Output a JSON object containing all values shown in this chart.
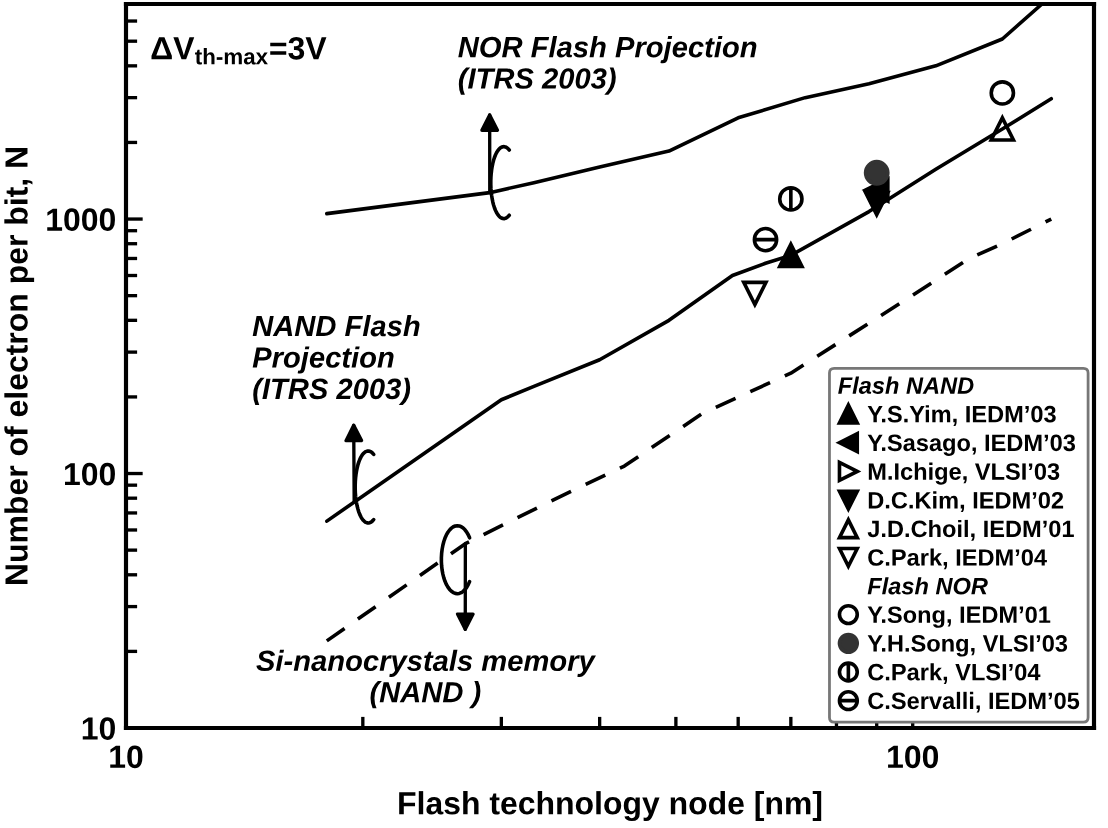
{
  "chart_data": {
    "type": "line",
    "log": "xy",
    "xlim": [
      10,
      170
    ],
    "ylim": [
      10,
      7000
    ],
    "xticks": [
      10,
      {
        "value": 20,
        "label": null
      },
      {
        "value": 30,
        "label": null
      },
      {
        "value": 40,
        "label": null
      },
      {
        "value": 50,
        "label": null
      },
      {
        "value": 60,
        "label": null
      },
      {
        "value": 70,
        "label": null
      },
      {
        "value": 80,
        "label": null
      },
      {
        "value": 90,
        "label": null
      },
      100
    ],
    "yticks": [
      10,
      {
        "value": 20,
        "label": null
      },
      {
        "value": 30,
        "label": null
      },
      {
        "value": 40,
        "label": null
      },
      {
        "value": 50,
        "label": null
      },
      {
        "value": 60,
        "label": null
      },
      {
        "value": 70,
        "label": null
      },
      {
        "value": 80,
        "label": null
      },
      {
        "value": 90,
        "label": null
      },
      100,
      {
        "value": 200,
        "label": null
      },
      {
        "value": 300,
        "label": null
      },
      {
        "value": 400,
        "label": null
      },
      {
        "value": 500,
        "label": null
      },
      {
        "value": 600,
        "label": null
      },
      {
        "value": 700,
        "label": null
      },
      {
        "value": 800,
        "label": null
      },
      {
        "value": 900,
        "label": null
      },
      1000,
      {
        "value": 2000,
        "label": null
      },
      {
        "value": 3000,
        "label": null
      },
      {
        "value": 4000,
        "label": null
      },
      {
        "value": 5000,
        "label": null
      },
      {
        "value": 6000,
        "label": null
      }
    ],
    "xlabel": "Flash technology node [nm]",
    "ylabel": "Number of electron per bit, N",
    "grid": false,
    "legend": "bottom right",
    "legend_title": "Flash NAND",
    "annotations": [
      "ΔV$_{th‐max}$=3V",
      {
        "text": "NOR Flash Projection\n(ITRS 2003)",
        "x": 29,
        "y": 1270
      },
      {
        "text": "NAND Flash\nProjection\n(ITRS 2003)",
        "x": 19.5,
        "y": 78
      },
      {
        "text": "Si-nanocrystals memory\n(NAND )",
        "x": 27,
        "y": 53
      },
      "Flash NOR"
    ],
    "series": [
      {
        "color": "#000000",
        "line_style": "solid",
        "x": [
          18,
          29,
          33,
          40,
          49,
          60,
          73,
          88,
          107,
          130,
          146
        ],
        "values": [
          1050,
          1270,
          1390,
          1600,
          1850,
          2500,
          3000,
          3400,
          4000,
          5100,
          7000
        ]
      },
      {
        "color": "#000000",
        "line_style": "solid",
        "x": [
          18,
          30,
          33,
          40,
          49,
          59,
          65,
          70,
          88,
          107,
          130,
          150
        ],
        "values": [
          65,
          195,
          220,
          280,
          400,
          600,
          670,
          720,
          1070,
          1570,
          2260,
          2970
        ]
      },
      {
        "color": "#000000",
        "line_style": "dashed",
        "x": [
          18,
          27,
          35,
          43,
          54,
          70,
          101,
          118,
          130,
          150
        ],
        "values": [
          22,
          53,
          79,
          107,
          172,
          248,
          512,
          700,
          800,
          1000
        ]
      },
      {
        "type": "scatter",
        "name": "Y.S.Yim, IEDM’03",
        "color": "#000000",
        "marker": "triangle-up",
        "x": [
          70
        ],
        "values": [
          720
        ]
      },
      {
        "type": "scatter",
        "name": "Y.Sasago, IEDM’03",
        "color": "#000000",
        "marker": "triangle-left",
        "x": [
          90
        ],
        "values": [
          1300
        ]
      },
      {
        "type": "scatter",
        "name": "M.Ichige, VLSI’03",
        "color": "#000000",
        "marker": "triangle-right-open",
        "x": [
          null
        ],
        "values": [
          null
        ]
      },
      {
        "type": "scatter",
        "name": "D.C.Kim, IEDM’02",
        "color": "#000000",
        "marker": "triangle-down",
        "x": [
          90
        ],
        "values": [
          1150
        ]
      },
      {
        "type": "scatter",
        "name": "J.D.Choil, IEDM’01",
        "color": "#000000",
        "marker": "triangle-up-open",
        "x": [
          130
        ],
        "values": [
          2260
        ]
      },
      {
        "type": "scatter",
        "name": "C.Park, IEDM’04",
        "color": "#000000",
        "marker": "triangle-down-open",
        "x": [
          63
        ],
        "values": [
          510
        ]
      },
      {
        "type": "scatter",
        "name": "Y.Song, IEDM’01",
        "color": "#000000",
        "marker": "circle-open",
        "x": [
          130
        ],
        "values": [
          3130
        ]
      },
      {
        "type": "scatter",
        "name": "Y.H.Song, VLSI’03",
        "color": "#333333",
        "marker": "circle",
        "x": [
          90
        ],
        "values": [
          1520
        ]
      },
      {
        "type": "scatter",
        "name": "C.Park, VLSI’04",
        "color": "#000000",
        "marker": "cross-vline-open",
        "x": [
          70
        ],
        "values": [
          1200
        ]
      },
      {
        "type": "scatter",
        "name": "C.Servalli, IEDM’05",
        "color": "#000000",
        "marker": "cross-hline-open",
        "x": [
          65
        ],
        "values": [
          830
        ]
      }
    ]
  }
}
